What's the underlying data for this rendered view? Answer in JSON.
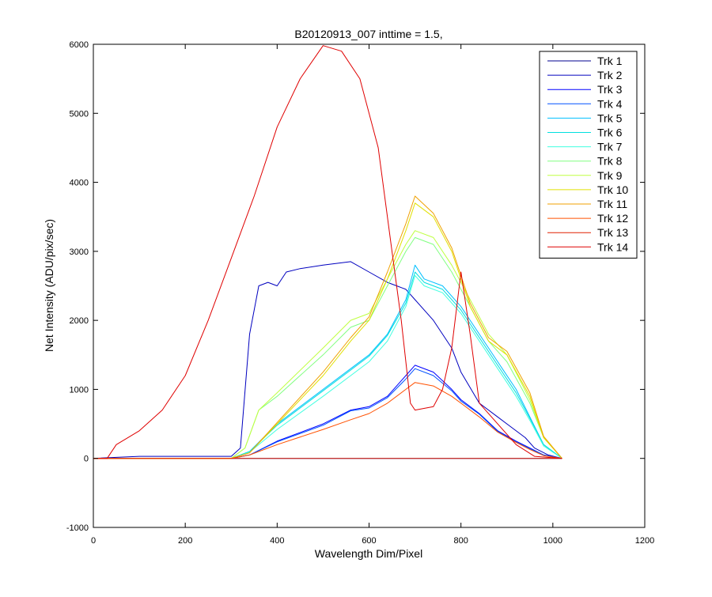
{
  "chart_data": {
    "type": "line",
    "title": "B20120913_007 inttime = 1.5,",
    "xlabel": "Wavelength Dim/Pixel",
    "ylabel": "Net Intensity (ADU/pix/sec)",
    "xlim": [
      0,
      1200
    ],
    "ylim": [
      -1000,
      6000
    ],
    "xticks": [
      0,
      200,
      400,
      600,
      800,
      1000,
      1200
    ],
    "yticks": [
      -1000,
      0,
      1000,
      2000,
      3000,
      4000,
      5000,
      6000
    ],
    "grid": false,
    "legend_position": "top-right",
    "series": [
      {
        "name": "Trk 1",
        "color": "#00008F",
        "points": [
          [
            0,
            0
          ],
          [
            1020,
            0
          ]
        ]
      },
      {
        "name": "Trk 2",
        "color": "#0000BF",
        "points": [
          [
            0,
            0
          ],
          [
            100,
            30
          ],
          [
            200,
            30
          ],
          [
            300,
            30
          ],
          [
            320,
            150
          ],
          [
            340,
            1800
          ],
          [
            360,
            2500
          ],
          [
            380,
            2550
          ],
          [
            400,
            2500
          ],
          [
            420,
            2700
          ],
          [
            450,
            2750
          ],
          [
            500,
            2800
          ],
          [
            560,
            2850
          ],
          [
            600,
            2700
          ],
          [
            640,
            2550
          ],
          [
            660,
            2500
          ],
          [
            680,
            2450
          ],
          [
            700,
            2300
          ],
          [
            740,
            2000
          ],
          [
            780,
            1600
          ],
          [
            800,
            1250
          ],
          [
            840,
            800
          ],
          [
            880,
            600
          ],
          [
            900,
            500
          ],
          [
            940,
            300
          ],
          [
            960,
            150
          ],
          [
            990,
            50
          ],
          [
            1020,
            0
          ]
        ]
      },
      {
        "name": "Trk 3",
        "color": "#0000FF",
        "points": [
          [
            0,
            0
          ],
          [
            300,
            0
          ],
          [
            340,
            50
          ],
          [
            400,
            250
          ],
          [
            500,
            500
          ],
          [
            560,
            700
          ],
          [
            600,
            750
          ],
          [
            640,
            900
          ],
          [
            680,
            1200
          ],
          [
            700,
            1350
          ],
          [
            740,
            1250
          ],
          [
            780,
            1000
          ],
          [
            800,
            850
          ],
          [
            840,
            650
          ],
          [
            880,
            400
          ],
          [
            920,
            250
          ],
          [
            950,
            150
          ],
          [
            980,
            50
          ],
          [
            1020,
            0
          ]
        ]
      },
      {
        "name": "Trk 4",
        "color": "#0050FF",
        "points": [
          [
            0,
            0
          ],
          [
            300,
            0
          ],
          [
            340,
            50
          ],
          [
            400,
            240
          ],
          [
            500,
            480
          ],
          [
            560,
            690
          ],
          [
            600,
            730
          ],
          [
            640,
            880
          ],
          [
            680,
            1150
          ],
          [
            700,
            1300
          ],
          [
            740,
            1200
          ],
          [
            780,
            980
          ],
          [
            800,
            830
          ],
          [
            840,
            640
          ],
          [
            880,
            390
          ],
          [
            920,
            240
          ],
          [
            950,
            140
          ],
          [
            980,
            50
          ],
          [
            1020,
            0
          ]
        ]
      },
      {
        "name": "Trk 5",
        "color": "#00BFFF",
        "points": [
          [
            0,
            0
          ],
          [
            300,
            0
          ],
          [
            340,
            100
          ],
          [
            400,
            500
          ],
          [
            500,
            1000
          ],
          [
            560,
            1300
          ],
          [
            600,
            1500
          ],
          [
            640,
            1800
          ],
          [
            680,
            2300
          ],
          [
            700,
            2800
          ],
          [
            720,
            2600
          ],
          [
            760,
            2500
          ],
          [
            800,
            2200
          ],
          [
            840,
            1800
          ],
          [
            880,
            1400
          ],
          [
            920,
            1000
          ],
          [
            950,
            600
          ],
          [
            980,
            200
          ],
          [
            1020,
            0
          ]
        ]
      },
      {
        "name": "Trk 6",
        "color": "#00DFDF",
        "points": [
          [
            0,
            0
          ],
          [
            300,
            0
          ],
          [
            340,
            100
          ],
          [
            400,
            480
          ],
          [
            500,
            980
          ],
          [
            560,
            1280
          ],
          [
            600,
            1480
          ],
          [
            640,
            1780
          ],
          [
            680,
            2250
          ],
          [
            700,
            2700
          ],
          [
            720,
            2550
          ],
          [
            760,
            2450
          ],
          [
            800,
            2150
          ],
          [
            840,
            1750
          ],
          [
            880,
            1350
          ],
          [
            920,
            950
          ],
          [
            950,
            580
          ],
          [
            980,
            200
          ],
          [
            1020,
            0
          ]
        ]
      },
      {
        "name": "Trk 7",
        "color": "#40FFE0",
        "points": [
          [
            0,
            0
          ],
          [
            300,
            0
          ],
          [
            340,
            90
          ],
          [
            400,
            420
          ],
          [
            500,
            900
          ],
          [
            560,
            1200
          ],
          [
            600,
            1400
          ],
          [
            640,
            1700
          ],
          [
            680,
            2200
          ],
          [
            700,
            2650
          ],
          [
            720,
            2500
          ],
          [
            760,
            2400
          ],
          [
            800,
            2100
          ],
          [
            840,
            1700
          ],
          [
            880,
            1300
          ],
          [
            920,
            900
          ],
          [
            950,
            550
          ],
          [
            980,
            180
          ],
          [
            1020,
            0
          ]
        ]
      },
      {
        "name": "Trk 8",
        "color": "#80FF80",
        "points": [
          [
            0,
            0
          ],
          [
            300,
            0
          ],
          [
            330,
            150
          ],
          [
            360,
            700
          ],
          [
            400,
            900
          ],
          [
            500,
            1500
          ],
          [
            560,
            1900
          ],
          [
            600,
            2000
          ],
          [
            640,
            2500
          ],
          [
            680,
            3000
          ],
          [
            700,
            3200
          ],
          [
            740,
            3100
          ],
          [
            780,
            2700
          ],
          [
            820,
            2200
          ],
          [
            860,
            1700
          ],
          [
            900,
            1400
          ],
          [
            950,
            800
          ],
          [
            980,
            300
          ],
          [
            1020,
            0
          ]
        ]
      },
      {
        "name": "Trk 9",
        "color": "#BFFF40",
        "points": [
          [
            0,
            0
          ],
          [
            300,
            0
          ],
          [
            330,
            150
          ],
          [
            360,
            700
          ],
          [
            400,
            950
          ],
          [
            500,
            1600
          ],
          [
            560,
            2000
          ],
          [
            600,
            2100
          ],
          [
            640,
            2600
          ],
          [
            680,
            3100
          ],
          [
            700,
            3300
          ],
          [
            740,
            3200
          ],
          [
            780,
            2800
          ],
          [
            820,
            2300
          ],
          [
            860,
            1800
          ],
          [
            900,
            1500
          ],
          [
            950,
            850
          ],
          [
            980,
            300
          ],
          [
            1020,
            0
          ]
        ]
      },
      {
        "name": "Trk 10",
        "color": "#E0E000",
        "points": [
          [
            0,
            0
          ],
          [
            300,
            0
          ],
          [
            340,
            80
          ],
          [
            400,
            500
          ],
          [
            500,
            1200
          ],
          [
            560,
            1700
          ],
          [
            600,
            2000
          ],
          [
            640,
            2600
          ],
          [
            680,
            3300
          ],
          [
            700,
            3700
          ],
          [
            740,
            3500
          ],
          [
            780,
            3000
          ],
          [
            820,
            2200
          ],
          [
            860,
            1700
          ],
          [
            900,
            1500
          ],
          [
            950,
            900
          ],
          [
            980,
            300
          ],
          [
            1020,
            0
          ]
        ]
      },
      {
        "name": "Trk 11",
        "color": "#F0A000",
        "points": [
          [
            0,
            0
          ],
          [
            300,
            0
          ],
          [
            340,
            80
          ],
          [
            400,
            520
          ],
          [
            500,
            1250
          ],
          [
            560,
            1750
          ],
          [
            600,
            2050
          ],
          [
            640,
            2700
          ],
          [
            680,
            3400
          ],
          [
            700,
            3800
          ],
          [
            740,
            3550
          ],
          [
            780,
            3050
          ],
          [
            820,
            2250
          ],
          [
            860,
            1750
          ],
          [
            900,
            1550
          ],
          [
            950,
            950
          ],
          [
            980,
            320
          ],
          [
            1020,
            0
          ]
        ]
      },
      {
        "name": "Trk 12",
        "color": "#FF5000",
        "points": [
          [
            0,
            0
          ],
          [
            300,
            0
          ],
          [
            340,
            50
          ],
          [
            400,
            200
          ],
          [
            500,
            420
          ],
          [
            560,
            560
          ],
          [
            600,
            650
          ],
          [
            640,
            800
          ],
          [
            680,
            1000
          ],
          [
            700,
            1100
          ],
          [
            740,
            1050
          ],
          [
            780,
            900
          ],
          [
            800,
            800
          ],
          [
            840,
            600
          ],
          [
            880,
            380
          ],
          [
            920,
            230
          ],
          [
            950,
            130
          ],
          [
            980,
            40
          ],
          [
            1020,
            0
          ]
        ]
      },
      {
        "name": "Trk 13",
        "color": "#E02000",
        "points": [
          [
            0,
            0
          ],
          [
            1020,
            0
          ]
        ]
      },
      {
        "name": "Trk 14",
        "color": "#DF0000",
        "points": [
          [
            0,
            0
          ],
          [
            30,
            0
          ],
          [
            50,
            200
          ],
          [
            100,
            400
          ],
          [
            150,
            700
          ],
          [
            200,
            1200
          ],
          [
            250,
            2000
          ],
          [
            300,
            2900
          ],
          [
            350,
            3800
          ],
          [
            400,
            4800
          ],
          [
            450,
            5500
          ],
          [
            500,
            5980
          ],
          [
            540,
            5900
          ],
          [
            580,
            5500
          ],
          [
            620,
            4500
          ],
          [
            650,
            3000
          ],
          [
            670,
            2000
          ],
          [
            690,
            800
          ],
          [
            700,
            700
          ],
          [
            740,
            750
          ],
          [
            760,
            1000
          ],
          [
            780,
            1600
          ],
          [
            800,
            2700
          ],
          [
            820,
            1800
          ],
          [
            840,
            800
          ],
          [
            880,
            500
          ],
          [
            920,
            200
          ],
          [
            960,
            30
          ],
          [
            1020,
            0
          ]
        ]
      }
    ]
  }
}
